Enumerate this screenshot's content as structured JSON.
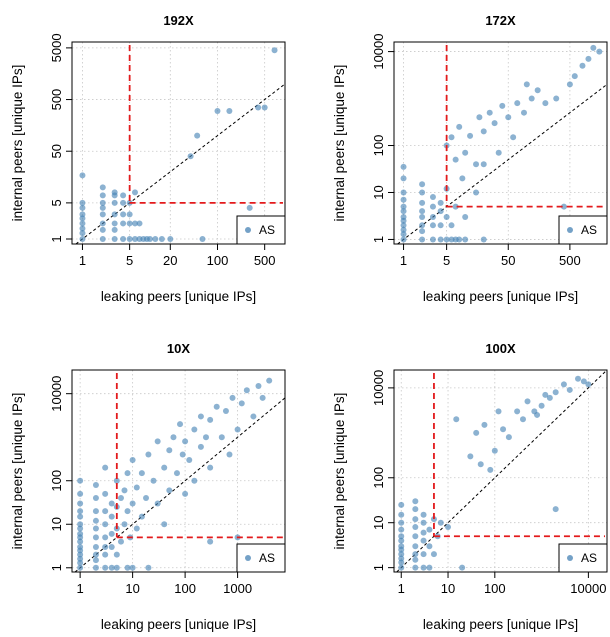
{
  "chart_data": [
    {
      "type": "scatter",
      "title": "192X",
      "xlabel": "leaking peers [unique IPs]",
      "ylabel": "internal peers [unique IPs]",
      "log_x": true,
      "log_y": true,
      "xlim": [
        0.7,
        1000
      ],
      "ylim": [
        0.8,
        6500
      ],
      "x_ticks": [
        1,
        5,
        20,
        100,
        500
      ],
      "y_ticks": [
        1,
        5,
        50,
        500,
        5000
      ],
      "threshold_x": 5,
      "threshold_y": 5,
      "legend": "AS",
      "legend_position": "bottom-right",
      "grid": true,
      "points": [
        [
          1,
          1
        ],
        [
          1,
          1.3
        ],
        [
          1,
          1.6
        ],
        [
          1,
          2
        ],
        [
          1,
          2.5
        ],
        [
          1,
          3
        ],
        [
          1,
          4
        ],
        [
          1,
          5
        ],
        [
          1,
          17
        ],
        [
          2,
          1
        ],
        [
          2,
          1.5
        ],
        [
          2,
          2
        ],
        [
          2,
          3
        ],
        [
          2,
          4
        ],
        [
          2,
          5
        ],
        [
          2,
          7
        ],
        [
          2,
          10
        ],
        [
          3,
          1
        ],
        [
          3,
          1.5
        ],
        [
          3,
          2
        ],
        [
          3,
          3
        ],
        [
          3,
          5
        ],
        [
          3,
          7
        ],
        [
          3,
          8
        ],
        [
          4,
          1
        ],
        [
          4,
          2
        ],
        [
          4,
          3
        ],
        [
          4,
          5
        ],
        [
          4,
          7
        ],
        [
          5,
          1
        ],
        [
          5,
          2
        ],
        [
          5,
          3
        ],
        [
          5,
          5
        ],
        [
          6,
          1
        ],
        [
          6,
          2
        ],
        [
          6,
          8
        ],
        [
          7,
          1
        ],
        [
          7,
          2
        ],
        [
          8,
          1
        ],
        [
          9,
          1
        ],
        [
          10,
          1
        ],
        [
          12,
          1
        ],
        [
          15,
          1
        ],
        [
          20,
          1
        ],
        [
          40,
          40
        ],
        [
          50,
          100
        ],
        [
          60,
          1
        ],
        [
          100,
          300
        ],
        [
          150,
          300
        ],
        [
          300,
          4
        ],
        [
          400,
          350
        ],
        [
          500,
          350
        ],
        [
          700,
          4500
        ]
      ]
    },
    {
      "type": "scatter",
      "title": "172X",
      "xlabel": "leaking peers [unique IPs]",
      "ylabel": "internal peers [unique IPs]",
      "log_x": true,
      "log_y": true,
      "xlim": [
        0.7,
        2000
      ],
      "ylim": [
        0.8,
        16000
      ],
      "x_ticks": [
        1,
        5,
        50,
        500
      ],
      "y_ticks": [
        1,
        10,
        100,
        10000
      ],
      "threshold_x": 5,
      "threshold_y": 5,
      "legend": "AS",
      "legend_position": "bottom-right",
      "grid": true,
      "points": [
        [
          1,
          1
        ],
        [
          1,
          1.3
        ],
        [
          1,
          1.6
        ],
        [
          1,
          2
        ],
        [
          1,
          2.5
        ],
        [
          1,
          3
        ],
        [
          1,
          4
        ],
        [
          1,
          5
        ],
        [
          1,
          7
        ],
        [
          1,
          10
        ],
        [
          1,
          20
        ],
        [
          1,
          35
        ],
        [
          2,
          1
        ],
        [
          2,
          1.5
        ],
        [
          2,
          2
        ],
        [
          2,
          3
        ],
        [
          2,
          4
        ],
        [
          2,
          6
        ],
        [
          2,
          10
        ],
        [
          2,
          15
        ],
        [
          3,
          1
        ],
        [
          3,
          2
        ],
        [
          3,
          3
        ],
        [
          3,
          5
        ],
        [
          3,
          8
        ],
        [
          4,
          1
        ],
        [
          4,
          2
        ],
        [
          4,
          4
        ],
        [
          4,
          6
        ],
        [
          5,
          1
        ],
        [
          5,
          3
        ],
        [
          5,
          12
        ],
        [
          5,
          100
        ],
        [
          6,
          1
        ],
        [
          6,
          2
        ],
        [
          6,
          150
        ],
        [
          7,
          1
        ],
        [
          7,
          5
        ],
        [
          7,
          50
        ],
        [
          8,
          1
        ],
        [
          8,
          250
        ],
        [
          9,
          20
        ],
        [
          10,
          1
        ],
        [
          10,
          3
        ],
        [
          10,
          70
        ],
        [
          12,
          160
        ],
        [
          15,
          10
        ],
        [
          15,
          40
        ],
        [
          17,
          400
        ],
        [
          20,
          1
        ],
        [
          20,
          40
        ],
        [
          20,
          200
        ],
        [
          25,
          500
        ],
        [
          30,
          300
        ],
        [
          35,
          70
        ],
        [
          40,
          700
        ],
        [
          50,
          400
        ],
        [
          60,
          150
        ],
        [
          70,
          800
        ],
        [
          90,
          500
        ],
        [
          100,
          2000
        ],
        [
          120,
          1000
        ],
        [
          150,
          1500
        ],
        [
          200,
          800
        ],
        [
          300,
          1000
        ],
        [
          400,
          5
        ],
        [
          500,
          2000
        ],
        [
          600,
          3000
        ],
        [
          800,
          5000
        ],
        [
          1000,
          7000
        ],
        [
          1200,
          12000
        ],
        [
          1500,
          10000
        ]
      ]
    },
    {
      "type": "scatter",
      "title": "10X",
      "xlabel": "leaking peers [unique IPs]",
      "ylabel": "internal peers [unique IPs]",
      "log_x": true,
      "log_y": true,
      "xlim": [
        0.7,
        8000
      ],
      "ylim": [
        0.8,
        35000
      ],
      "x_ticks": [
        1,
        10,
        100,
        1000
      ],
      "y_ticks": [
        1,
        10,
        100,
        10000
      ],
      "threshold_x": 5,
      "threshold_y": 5,
      "legend": "AS",
      "legend_position": "bottom-right",
      "grid": true,
      "points": [
        [
          1,
          1
        ],
        [
          1,
          1.3
        ],
        [
          1,
          1.6
        ],
        [
          1,
          2
        ],
        [
          1,
          2.5
        ],
        [
          1,
          3
        ],
        [
          1,
          4
        ],
        [
          1,
          5
        ],
        [
          1,
          6
        ],
        [
          1,
          8
        ],
        [
          1,
          10
        ],
        [
          1,
          15
        ],
        [
          1,
          20
        ],
        [
          1,
          30
        ],
        [
          1,
          50
        ],
        [
          1,
          100
        ],
        [
          2,
          1
        ],
        [
          2,
          1.5
        ],
        [
          2,
          2
        ],
        [
          2,
          3
        ],
        [
          2,
          5
        ],
        [
          2,
          8
        ],
        [
          2,
          12
        ],
        [
          2,
          20
        ],
        [
          2,
          40
        ],
        [
          2,
          80
        ],
        [
          3,
          1
        ],
        [
          3,
          2
        ],
        [
          3,
          3
        ],
        [
          3,
          5
        ],
        [
          3,
          10
        ],
        [
          3,
          20
        ],
        [
          3,
          50
        ],
        [
          3,
          200
        ],
        [
          4,
          1
        ],
        [
          4,
          3
        ],
        [
          4,
          6
        ],
        [
          4,
          15
        ],
        [
          4,
          30
        ],
        [
          5,
          1
        ],
        [
          5,
          2
        ],
        [
          5,
          8
        ],
        [
          5,
          25
        ],
        [
          5,
          100
        ],
        [
          6,
          4
        ],
        [
          6,
          40
        ],
        [
          7,
          10
        ],
        [
          7,
          60
        ],
        [
          8,
          1
        ],
        [
          8,
          20
        ],
        [
          8,
          150
        ],
        [
          9,
          5
        ],
        [
          10,
          1
        ],
        [
          10,
          30
        ],
        [
          10,
          300
        ],
        [
          12,
          8
        ],
        [
          12,
          70
        ],
        [
          15,
          15
        ],
        [
          15,
          150
        ],
        [
          18,
          40
        ],
        [
          20,
          1
        ],
        [
          20,
          400
        ],
        [
          25,
          100
        ],
        [
          30,
          30
        ],
        [
          30,
          800
        ],
        [
          40,
          200
        ],
        [
          40,
          10
        ],
        [
          50,
          60
        ],
        [
          50,
          500
        ],
        [
          60,
          1000
        ],
        [
          70,
          150
        ],
        [
          80,
          2000
        ],
        [
          90,
          400
        ],
        [
          100,
          50
        ],
        [
          100,
          800
        ],
        [
          120,
          300
        ],
        [
          150,
          1500
        ],
        [
          150,
          100
        ],
        [
          200,
          3000
        ],
        [
          200,
          600
        ],
        [
          250,
          1000
        ],
        [
          300,
          2500
        ],
        [
          300,
          200
        ],
        [
          400,
          5000
        ],
        [
          500,
          1000
        ],
        [
          600,
          4000
        ],
        [
          700,
          400
        ],
        [
          800,
          8000
        ],
        [
          1000,
          1500
        ],
        [
          1200,
          6000
        ],
        [
          1500,
          12000
        ],
        [
          2000,
          3000
        ],
        [
          2500,
          15000
        ],
        [
          3000,
          8000
        ],
        [
          4000,
          20000
        ],
        [
          1000,
          5
        ],
        [
          300,
          4
        ]
      ]
    },
    {
      "type": "scatter",
      "title": "100X",
      "xlabel": "leaking peers [unique IPs]",
      "ylabel": "internal peers [unique IPs]",
      "log_x": true,
      "log_y": true,
      "xlim": [
        0.7,
        25000
      ],
      "ylim": [
        0.8,
        25000
      ],
      "x_ticks": [
        1,
        10,
        100,
        10000
      ],
      "y_ticks": [
        1,
        10,
        100,
        10000
      ],
      "threshold_x": 5,
      "threshold_y": 5,
      "legend": "AS",
      "legend_position": "bottom-right",
      "grid": true,
      "points": [
        [
          1,
          1
        ],
        [
          1,
          1.3
        ],
        [
          1,
          1.6
        ],
        [
          1,
          2
        ],
        [
          1,
          2.5
        ],
        [
          1,
          3
        ],
        [
          1,
          4
        ],
        [
          1,
          5
        ],
        [
          1,
          7
        ],
        [
          1,
          10
        ],
        [
          1,
          15
        ],
        [
          1,
          25
        ],
        [
          2,
          1
        ],
        [
          2,
          1.5
        ],
        [
          2,
          2
        ],
        [
          2,
          3
        ],
        [
          2,
          5
        ],
        [
          2,
          8
        ],
        [
          2,
          12
        ],
        [
          2,
          20
        ],
        [
          2,
          30
        ],
        [
          3,
          1
        ],
        [
          3,
          2
        ],
        [
          3,
          4
        ],
        [
          3,
          6
        ],
        [
          3,
          10
        ],
        [
          3,
          15
        ],
        [
          4,
          1
        ],
        [
          4,
          3
        ],
        [
          4,
          7
        ],
        [
          5,
          2
        ],
        [
          5,
          12
        ],
        [
          6,
          5
        ],
        [
          7,
          10
        ],
        [
          10,
          8
        ],
        [
          15,
          2000
        ],
        [
          20,
          1
        ],
        [
          30,
          300
        ],
        [
          40,
          1000
        ],
        [
          50,
          200
        ],
        [
          60,
          1500
        ],
        [
          80,
          150
        ],
        [
          100,
          400
        ],
        [
          120,
          3000
        ],
        [
          150,
          1200
        ],
        [
          200,
          800
        ],
        [
          300,
          3000
        ],
        [
          400,
          2000
        ],
        [
          500,
          5000
        ],
        [
          700,
          3000
        ],
        [
          800,
          2500
        ],
        [
          1000,
          4000
        ],
        [
          1200,
          7000
        ],
        [
          1500,
          6000
        ],
        [
          2000,
          20
        ],
        [
          2000,
          8000
        ],
        [
          3000,
          12000
        ],
        [
          4000,
          9000
        ],
        [
          6000,
          16000
        ],
        [
          8000,
          14000
        ],
        [
          10000,
          12000
        ]
      ]
    }
  ]
}
